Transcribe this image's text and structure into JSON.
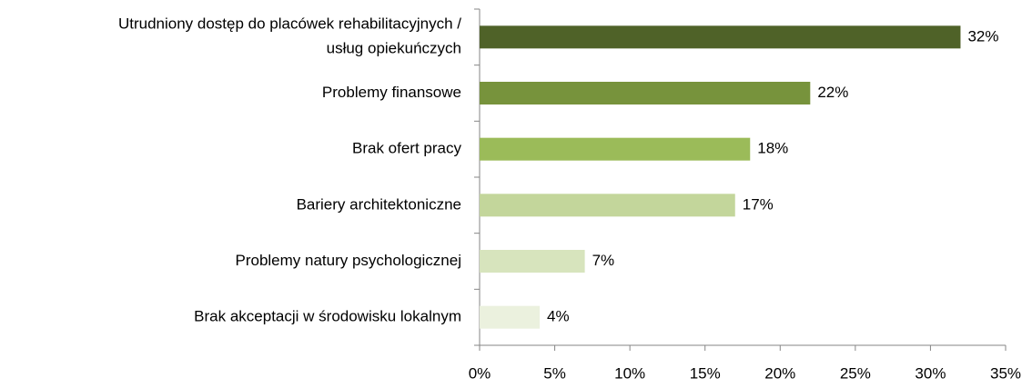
{
  "chart_data": {
    "type": "hbar",
    "categories": [
      "Utrudniony dostęp do placówek rehabilitacyjnych /\nusług opiekuńczych",
      "Problemy finansowe",
      "Brak ofert pracy",
      "Bariery architektoniczne",
      "Problemy natury psychologicznej",
      "Brak akceptacji w środowisku lokalnym"
    ],
    "values": [
      32,
      22,
      18,
      17,
      7,
      4
    ],
    "value_labels": [
      "32%",
      "22%",
      "18%",
      "17%",
      "7%",
      "4%"
    ],
    "colors": [
      "#4f6228",
      "#77933c",
      "#9bbb59",
      "#c3d69b",
      "#d7e4bd",
      "#ebf1de"
    ],
    "xlim": [
      0,
      35
    ],
    "xticks": [
      {
        "value": 0,
        "label": "0%"
      },
      {
        "value": 5,
        "label": "5%"
      },
      {
        "value": 10,
        "label": "10%"
      },
      {
        "value": 15,
        "label": "15%"
      },
      {
        "value": 20,
        "label": "20%"
      },
      {
        "value": 25,
        "label": "25%"
      },
      {
        "value": 30,
        "label": "30%"
      },
      {
        "value": 35,
        "label": "35%"
      }
    ],
    "grid": false
  }
}
